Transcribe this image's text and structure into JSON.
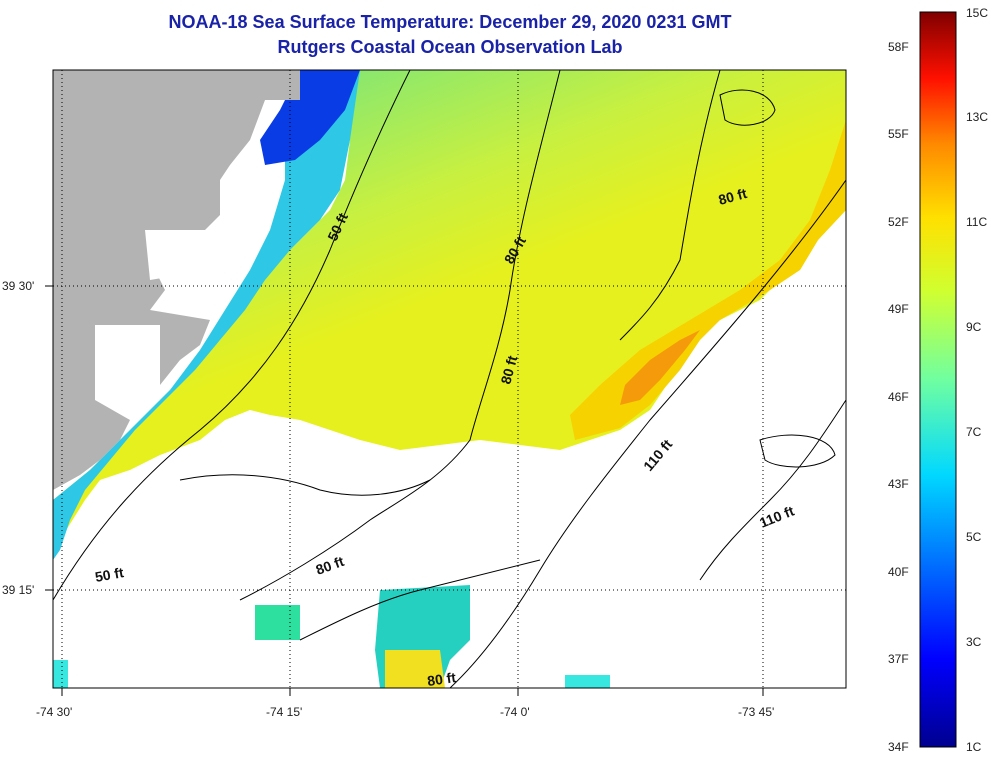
{
  "header": {
    "title": "NOAA-18 Sea Surface Temperature:  December 29, 2020 0231 GMT",
    "subtitle": "Rutgers Coastal Ocean Observation Lab"
  },
  "map": {
    "longitude_labels": [
      "-74 30'",
      "-74 15'",
      "-74 0'",
      "-73 45'"
    ],
    "latitude_labels": [
      "39 30'",
      "39 15'"
    ],
    "contour_labels": [
      "50 ft",
      "50 ft",
      "80 ft",
      "80 ft",
      "80 ft",
      "80 ft",
      "80 ft",
      "110 ft",
      "110 ft"
    ],
    "land_color": "#b3b3b3",
    "water_nodata_color": "#ffffff"
  },
  "colorbar": {
    "celsius_labels": [
      "15C",
      "13C",
      "11C",
      "9C",
      "7C",
      "5C",
      "3C",
      "1C"
    ],
    "fahrenheit_labels": [
      "58F",
      "55F",
      "52F",
      "49F",
      "46F",
      "43F",
      "40F",
      "37F",
      "34F"
    ],
    "min_c": 1,
    "max_c": 15,
    "palette": [
      "#00008f",
      "#0000ff",
      "#0080ff",
      "#00ffff",
      "#80ff80",
      "#ffff00",
      "#ff8000",
      "#ff0000",
      "#800000"
    ]
  }
}
